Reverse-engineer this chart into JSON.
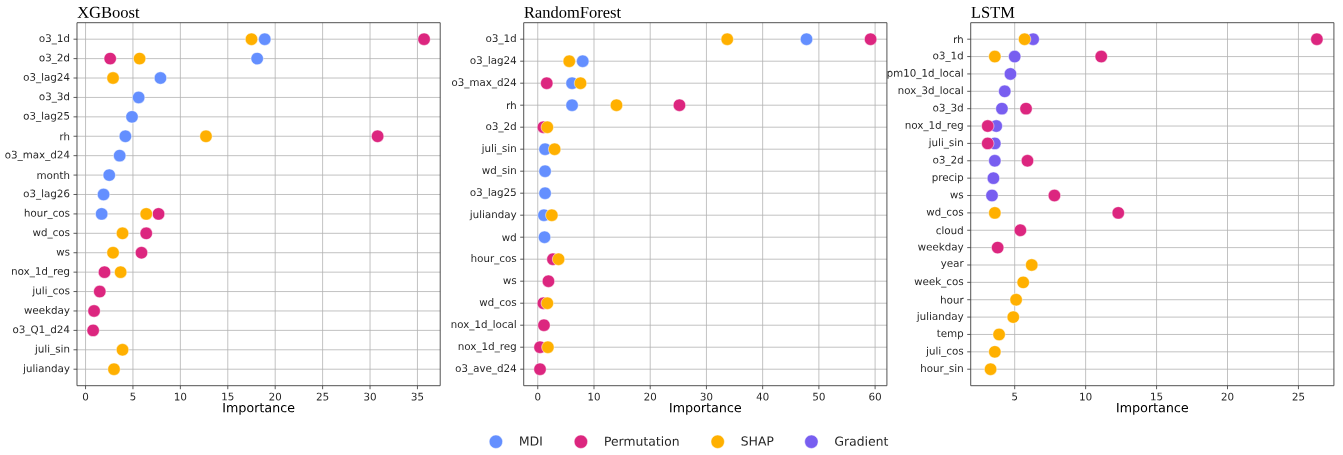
{
  "chart_data": [
    {
      "type": "scatter",
      "title": "XGBoost",
      "orientation": "horizontal",
      "grid": true,
      "xlabel": "Importance",
      "xlim": [
        -0.9,
        37.4
      ],
      "xticks": [
        0,
        5,
        10,
        15,
        20,
        25,
        30,
        35
      ],
      "categories": [
        "o3_1d",
        "o3_2d",
        "o3_lag24",
        "o3_3d",
        "o3_lag25",
        "rh",
        "o3_max_d24",
        "month",
        "o3_lag26",
        "hour_cos",
        "wd_cos",
        "ws",
        "nox_1d_reg",
        "juli_cos",
        "weekday",
        "o3_Q1_d24",
        "juli_sin",
        "julianday"
      ],
      "series": [
        {
          "color": "#648FFF",
          "values": [
            18.9,
            18.1,
            7.9,
            5.6,
            4.9,
            4.2,
            3.6,
            2.5,
            1.9,
            1.7,
            null,
            null,
            null,
            null,
            null,
            null,
            null,
            null
          ]
        },
        {
          "color": "#DC267F",
          "values": [
            35.7,
            2.6,
            null,
            null,
            null,
            30.8,
            null,
            null,
            null,
            7.7,
            6.4,
            5.9,
            2.0,
            1.5,
            0.9,
            0.8,
            null,
            null
          ]
        },
        {
          "color": "#FFB000",
          "values": [
            17.5,
            5.7,
            2.9,
            null,
            null,
            12.7,
            null,
            null,
            null,
            6.4,
            3.9,
            2.9,
            3.7,
            null,
            null,
            null,
            3.9,
            3.0
          ]
        }
      ]
    },
    {
      "type": "scatter",
      "title": "RandomForest",
      "orientation": "horizontal",
      "grid": true,
      "legend": "bottom",
      "xlabel": "Importance",
      "xlim": [
        -2.5,
        62.1
      ],
      "xticks": [
        0,
        10,
        20,
        30,
        40,
        50,
        60
      ],
      "categories": [
        "o3_1d",
        "o3_lag24",
        "o3_max_d24",
        "rh",
        "o3_2d",
        "juli_sin",
        "wd_sin",
        "o3_lag25",
        "julianday",
        "wd",
        "hour_cos",
        "ws",
        "wd_cos",
        "nox_1d_local",
        "nox_1d_reg",
        "o3_ave_d24"
      ],
      "series": [
        {
          "name": "MDI",
          "color": "#648FFF",
          "values": [
            47.8,
            8.0,
            6.1,
            6.1,
            null,
            1.3,
            1.3,
            1.3,
            1.1,
            1.2,
            null,
            null,
            null,
            null,
            null,
            null
          ]
        },
        {
          "name": "Permutation",
          "color": "#DC267F",
          "values": [
            59.2,
            null,
            1.6,
            25.2,
            1.0,
            null,
            null,
            null,
            null,
            null,
            2.7,
            1.9,
            1.0,
            1.1,
            0.4,
            0.4
          ]
        },
        {
          "name": "SHAP",
          "color": "#FFB000",
          "values": [
            33.7,
            5.6,
            7.6,
            14.0,
            1.7,
            3.0,
            null,
            null,
            2.5,
            null,
            3.7,
            null,
            1.7,
            null,
            1.8,
            null
          ]
        }
      ]
    },
    {
      "type": "scatter",
      "title": "LSTM",
      "orientation": "horizontal",
      "grid": true,
      "legend": "bottom",
      "xlabel": "Importance",
      "xlim": [
        1.9,
        27.5
      ],
      "xticks": [
        5,
        10,
        15,
        20,
        25
      ],
      "categories": [
        "rh",
        "o3_1d",
        "pm10_1d_local",
        "nox_3d_local",
        "o3_3d",
        "nox_1d_reg",
        "juli_sin",
        "o3_2d",
        "precip",
        "ws",
        "wd_cos",
        "cloud",
        "weekday",
        "year",
        "week_cos",
        "hour",
        "julianday",
        "temp",
        "juli_cos",
        "hour_sin"
      ],
      "series": [
        {
          "name": "Gradient",
          "color": "#785EF0",
          "values": [
            6.3,
            5.0,
            4.7,
            4.3,
            4.1,
            3.7,
            3.6,
            3.6,
            3.5,
            3.4,
            null,
            null,
            null,
            null,
            null,
            null,
            null,
            null,
            null,
            null
          ]
        },
        {
          "color": "#DC267F",
          "values": [
            26.3,
            11.1,
            null,
            null,
            5.8,
            3.1,
            3.1,
            5.9,
            null,
            7.8,
            12.3,
            5.4,
            3.8,
            null,
            null,
            null,
            null,
            null,
            null,
            null
          ]
        },
        {
          "color": "#FFB000",
          "values": [
            5.7,
            3.6,
            null,
            null,
            null,
            null,
            null,
            null,
            null,
            null,
            3.6,
            null,
            null,
            6.2,
            5.6,
            5.1,
            4.9,
            3.9,
            3.6,
            3.3
          ]
        }
      ]
    }
  ]
}
